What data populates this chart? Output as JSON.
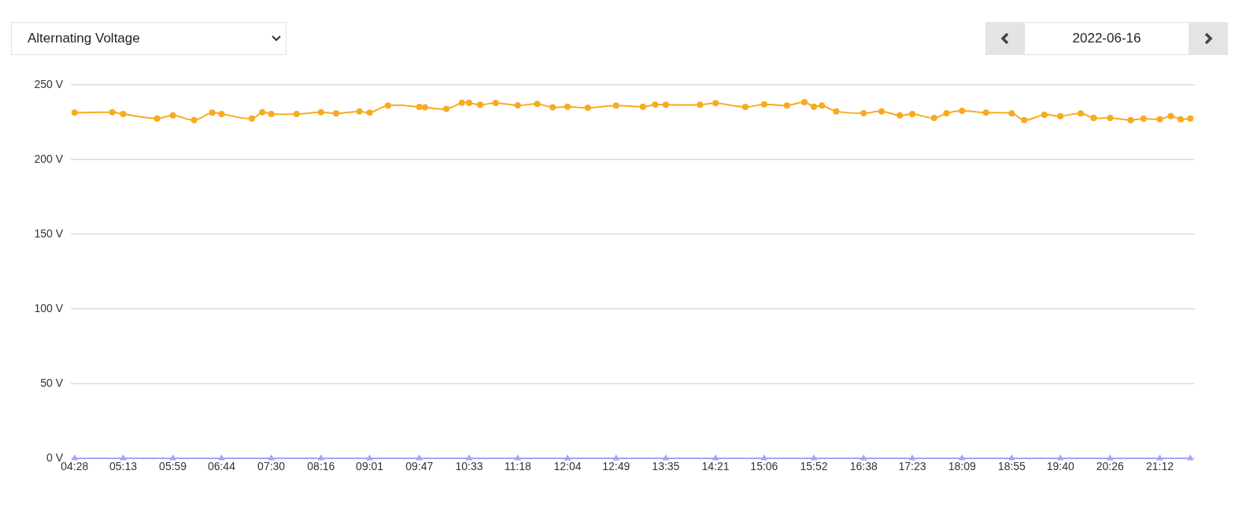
{
  "chart_data": {
    "type": "line",
    "title": "Alternating Voltage",
    "subtitle": "2022-06-16",
    "xlim": [
      4.41,
      21.74
    ],
    "xticks": [
      {
        "value": 4.467,
        "label": "04:28"
      },
      {
        "value": 5.217,
        "label": "05:13"
      },
      {
        "value": 5.983,
        "label": "05:59"
      },
      {
        "value": 6.733,
        "label": "06:44"
      },
      {
        "value": 7.5,
        "label": "07:30"
      },
      {
        "value": 8.267,
        "label": "08:16"
      },
      {
        "value": 9.017,
        "label": "09:01"
      },
      {
        "value": 9.783,
        "label": "09:47"
      },
      {
        "value": 10.55,
        "label": "10:33"
      },
      {
        "value": 11.3,
        "label": "11:18"
      },
      {
        "value": 12.067,
        "label": "12:04"
      },
      {
        "value": 12.817,
        "label": "12:49"
      },
      {
        "value": 13.583,
        "label": "13:35"
      },
      {
        "value": 14.35,
        "label": "14:21"
      },
      {
        "value": 15.1,
        "label": "15:06"
      },
      {
        "value": 15.867,
        "label": "15:52"
      },
      {
        "value": 16.633,
        "label": "16:38"
      },
      {
        "value": 17.383,
        "label": "17:23"
      },
      {
        "value": 18.15,
        "label": "18:09"
      },
      {
        "value": 18.917,
        "label": "18:55"
      },
      {
        "value": 19.667,
        "label": "19:40"
      },
      {
        "value": 20.433,
        "label": "20:26"
      },
      {
        "value": 21.2,
        "label": "21:12"
      }
    ],
    "ylim": [
      0,
      250
    ],
    "yticks": [
      {
        "value": 0,
        "label": "0 V"
      },
      {
        "value": 50,
        "label": "50 V"
      },
      {
        "value": 100,
        "label": "100 V"
      },
      {
        "value": 150,
        "label": "150 V"
      },
      {
        "value": 200,
        "label": "200 V"
      },
      {
        "value": 250,
        "label": "250 V"
      }
    ],
    "grid": "y",
    "series": [
      {
        "color": "#f7ab1f",
        "marker": "circle",
        "x": [
          4.467,
          5.05,
          5.217,
          5.74,
          5.983,
          6.31,
          6.59,
          6.733,
          7.2,
          7.36,
          7.5,
          7.89,
          8.267,
          8.5,
          8.86,
          9.017,
          9.3,
          9.783,
          9.87,
          10.2,
          10.44,
          10.55,
          10.72,
          10.96,
          11.3,
          11.6,
          11.84,
          12.067,
          12.38,
          12.817,
          13.23,
          13.42,
          13.583,
          14.11,
          14.35,
          14.81,
          15.1,
          15.45,
          15.72,
          15.867,
          15.99,
          16.21,
          16.633,
          16.91,
          17.19,
          17.383,
          17.72,
          17.91,
          18.15,
          18.52,
          18.917,
          19.11,
          19.42,
          19.667,
          19.98,
          20.18,
          20.433,
          20.75,
          20.95,
          21.2,
          21.37,
          21.52,
          21.67
        ],
        "values": [
          231.4,
          231.7,
          230.5,
          227.5,
          229.6,
          226.5,
          231.4,
          230.5,
          227.5,
          231.7,
          230.5,
          230.5,
          231.7,
          230.9,
          232.3,
          231.4,
          236.2,
          235.3,
          235,
          234,
          238,
          238,
          236.7,
          237.9,
          236.3,
          237.2,
          235,
          235.4,
          234.7,
          236.2,
          235.4,
          236.8,
          236.7,
          236.7,
          237.7,
          235.3,
          237,
          236.2,
          238.4,
          235.4,
          236.2,
          232.3,
          231,
          232.3,
          229.6,
          230.5,
          227.9,
          231,
          232.6,
          231.4,
          230.9,
          226.5,
          230,
          229.1,
          230.9,
          227.9,
          227.9,
          226.5,
          227.4,
          227,
          229.1,
          227,
          227.5
        ]
      },
      {
        "color": "#a0a6f7",
        "marker": "triangle",
        "x": [
          4.467,
          5.217,
          5.983,
          6.733,
          7.5,
          8.267,
          9.017,
          9.783,
          10.55,
          11.3,
          12.067,
          12.817,
          13.583,
          14.35,
          15.1,
          15.867,
          16.633,
          17.383,
          18.15,
          18.917,
          19.667,
          20.433,
          21.2,
          21.67
        ],
        "values": [
          0,
          0,
          0,
          0,
          0,
          0,
          0,
          0,
          0,
          0,
          0,
          0,
          0,
          0,
          0,
          0,
          0,
          0,
          0,
          0,
          0,
          0,
          0,
          0
        ]
      }
    ]
  }
}
